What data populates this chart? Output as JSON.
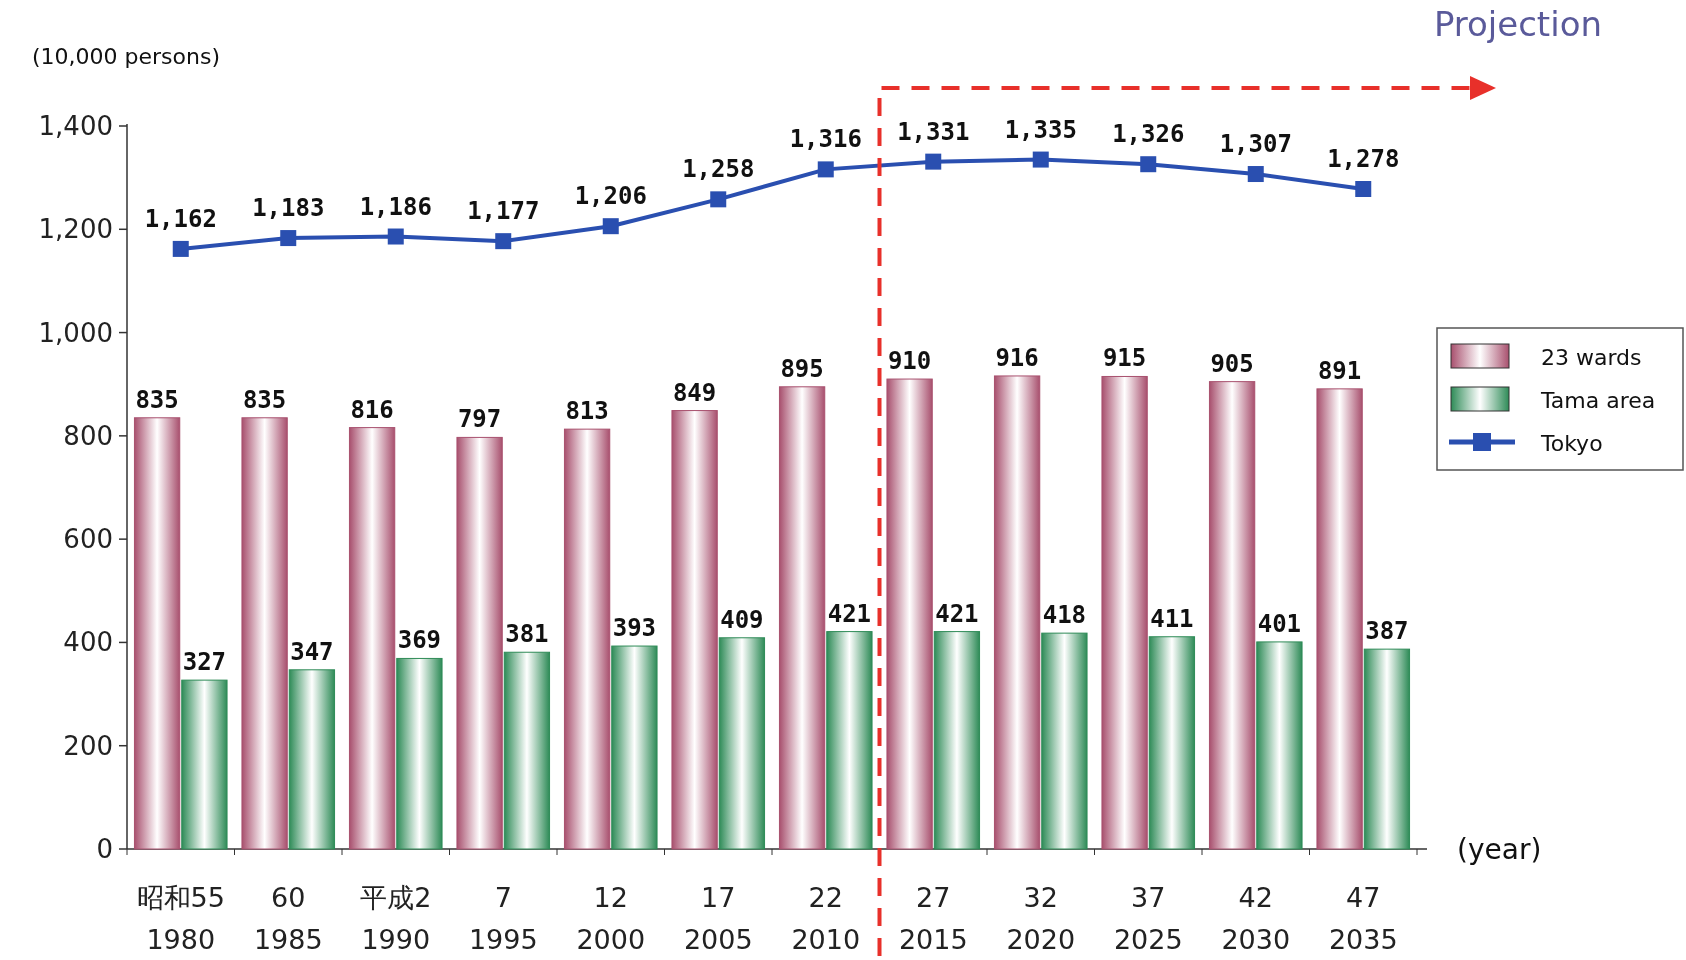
{
  "chart_data": {
    "type": "bar",
    "ylabel": "(10,000 persons)",
    "xlabel": "(year)",
    "categories": [
      "昭和55\n1980",
      "60\n1985",
      "平成2\n1990",
      "7\n1995",
      "12\n2000",
      "17\n2005",
      "22\n2010",
      "27\n2015",
      "32\n2020",
      "37\n2025",
      "42\n2030",
      "47\n2035"
    ],
    "series": [
      {
        "name": "23 wards",
        "color": "#a8506e",
        "values": [
          835,
          835,
          816,
          797,
          813,
          849,
          895,
          910,
          916,
          915,
          905,
          891
        ]
      },
      {
        "name": "Tama area",
        "color": "#2e8b57",
        "values": [
          327,
          347,
          369,
          381,
          393,
          409,
          421,
          421,
          418,
          411,
          401,
          387
        ]
      },
      {
        "name": "Tokyo",
        "type": "line",
        "color": "#2a4fb0",
        "marker": "square",
        "values": [
          1162,
          1183,
          1186,
          1177,
          1206,
          1258,
          1316,
          1331,
          1335,
          1326,
          1307,
          1278
        ],
        "value_labels": [
          "1,162",
          "1,183",
          "1,186",
          "1,177",
          "1,206",
          "1,258",
          "1,316",
          "1,331",
          "1,335",
          "1,326",
          "1,307",
          "1,278"
        ]
      }
    ],
    "ylim": [
      0,
      1400
    ],
    "yticks": [
      0,
      200,
      400,
      600,
      800,
      {
        "value": 1000,
        "label": "1,000"
      },
      {
        "value": 1200,
        "label": "1,200"
      },
      {
        "value": 1400,
        "label": "1,400"
      }
    ],
    "data_labels": true,
    "legend": "right",
    "grid": false,
    "annotations": [
      "Projection"
    ]
  }
}
